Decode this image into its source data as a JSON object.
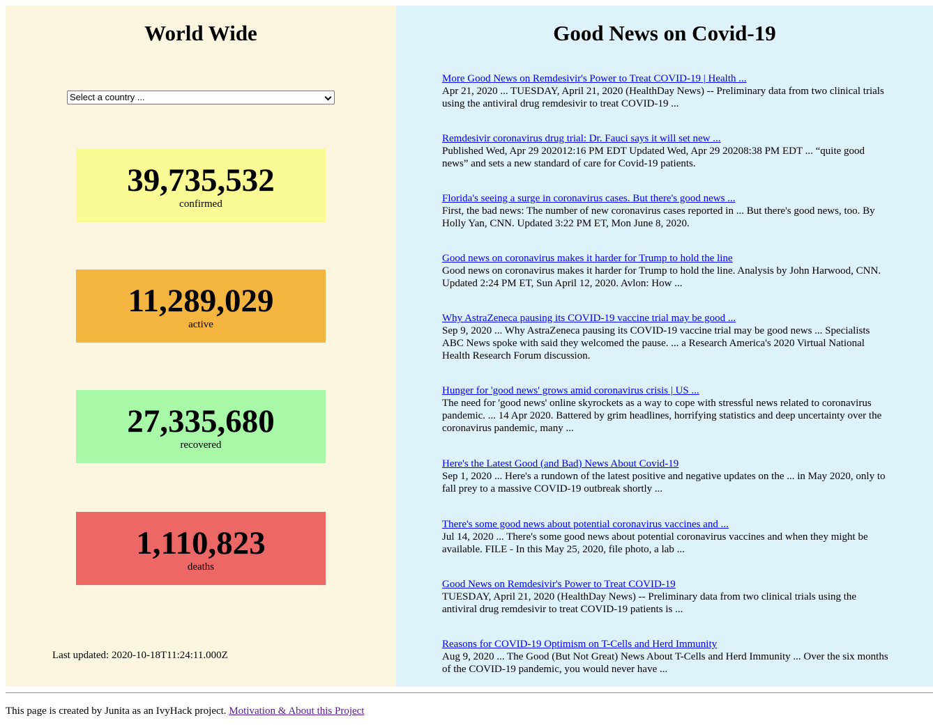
{
  "worldwide": {
    "title": "World Wide",
    "select_placeholder": "Select a country ...",
    "stats": [
      {
        "value": "39,735,532",
        "label": "confirmed",
        "color": "#fbfb96"
      },
      {
        "value": "11,289,029",
        "label": "active",
        "color": "#f5b541"
      },
      {
        "value": "27,335,680",
        "label": "recovered",
        "color": "#a7f9a8"
      },
      {
        "value": "1,110,823",
        "label": "deaths",
        "color": "#ee6767"
      }
    ],
    "last_updated": "Last updated: 2020-10-18T11:24:11.000Z"
  },
  "good_news": {
    "title": "Good News on Covid-19",
    "articles": [
      {
        "title": "More Good News on Remdesivir's Power to Treat COVID-19 | Health ...",
        "snippet": "Apr 21, 2020 ... TUESDAY, April 21, 2020 (HealthDay News) -- Preliminary data from two clinical trials using the antiviral drug remdesivir to treat COVID-19 ..."
      },
      {
        "title": "Remdesivir coronavirus drug trial: Dr. Fauci says it will set new ...",
        "snippet": "Published Wed, Apr 29 202012:16 PM EDT Updated Wed, Apr 29 20208:38 PM EDT ... “quite good news” and sets a new standard of care for Covid-19 patients."
      },
      {
        "title": "Florida's seeing a surge in coronavirus cases. But there's good news ...",
        "snippet": "First, the bad news: The number of new coronavirus cases reported in ... But there's good news, too. By Holly Yan, CNN. Updated 3:22 PM ET, Mon June 8, 2020."
      },
      {
        "title": "Good news on coronavirus makes it harder for Trump to hold the line",
        "snippet": "Good news on coronavirus makes it harder for Trump to hold the line. Analysis by John Harwood, CNN. Updated 2:24 PM ET, Sun April 12, 2020. Avlon: How ..."
      },
      {
        "title": "Why AstraZeneca pausing its COVID-19 vaccine trial may be good ...",
        "snippet": "Sep 9, 2020 ... Why AstraZeneca pausing its COVID-19 vaccine trial may be good news ... Specialists ABC News spoke with said they welcomed the pause. ... a Research America's 2020 Virtual National Health Research Forum discussion."
      },
      {
        "title": "Hunger for 'good news' grows amid coronavirus crisis | US ...",
        "snippet": "The need for 'good news' online skyrockets as a way to cope with stressful news related to coronavirus pandemic. ... 14 Apr 2020. Battered by grim headlines, horrifying statistics and deep uncertainty over the coronavirus pandemic, many ..."
      },
      {
        "title": "Here's the Latest Good (and Bad) News About Covid-19",
        "snippet": "Sep 1, 2020 ... Here's a rundown of the latest positive and negative updates on the ... in May 2020, only to fall prey to a massive COVID-19 outbreak shortly ..."
      },
      {
        "title": "There's some good news about potential coronavirus vaccines and ...",
        "snippet": "Jul 14, 2020 ... There's some good news about potential coronavirus vaccines and when they might be available. FILE - In this May 25, 2020, file photo, a lab ..."
      },
      {
        "title": "Good News on Remdesivir's Power to Treat COVID-19",
        "snippet": "TUESDAY, April 21, 2020 (HealthDay News) -- Preliminary data from two clinical trials using the antiviral drug remdesivir to treat COVID-19 patients is ..."
      },
      {
        "title": "Reasons for COVID-19 Optimism on T-Cells and Herd Immunity",
        "snippet": "Aug 9, 2020 ... The Good (But Not Great) News About T-Cells and Herd Immunity ... Over the six months of the COVID-19 pandemic, you would never have ..."
      }
    ]
  },
  "footer": {
    "text": "This page is created by Junita as an IvyHack project.",
    "link": "Motivation & About this Project"
  }
}
